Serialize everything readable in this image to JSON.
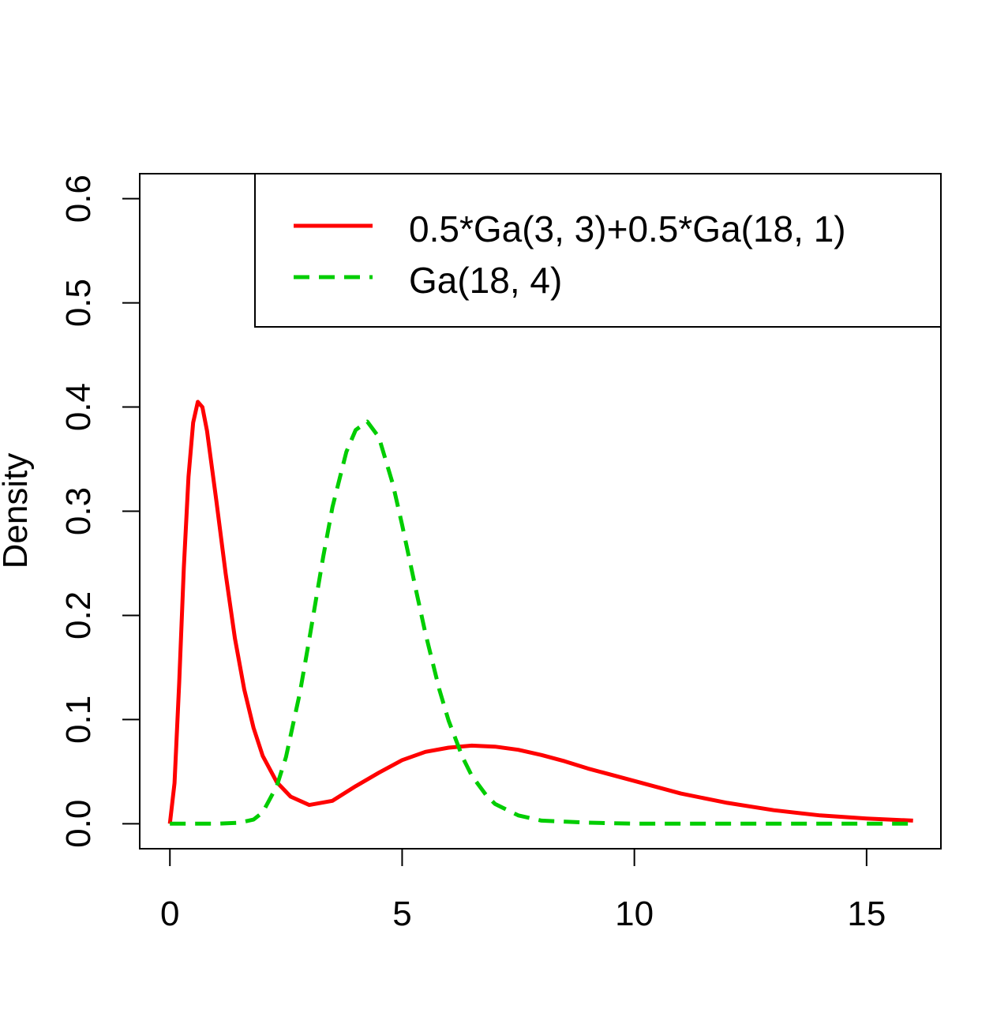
{
  "chart_data": {
    "type": "line",
    "title": "",
    "xlabel": "",
    "ylabel": "Density",
    "xlim": [
      -0.65,
      16.6
    ],
    "ylim": [
      -0.024,
      0.624
    ],
    "x_ticks": [
      "0",
      "5",
      "10",
      "15"
    ],
    "x_tick_values": [
      0,
      5,
      10,
      15
    ],
    "y_ticks": [
      "0.0",
      "0.1",
      "0.2",
      "0.3",
      "0.4",
      "0.5",
      "0.6"
    ],
    "y_tick_values": [
      0,
      0.1,
      0.2,
      0.3,
      0.4,
      0.5,
      0.6
    ],
    "grid": false,
    "legend_position": "top-right",
    "series": [
      {
        "name": "0.5*Ga(3, 3)+0.5*Ga(18, 1)",
        "color": "#FF0000",
        "dash": "solid",
        "x": [
          0,
          0.1,
          0.2,
          0.3,
          0.4,
          0.5,
          0.6,
          0.7,
          0.8,
          1.0,
          1.2,
          1.4,
          1.6,
          1.8,
          2.0,
          2.3,
          2.6,
          3.0,
          3.5,
          4.0,
          4.5,
          5.0,
          5.5,
          6.0,
          6.5,
          7.0,
          7.5,
          8.0,
          8.5,
          9.0,
          10.0,
          11.0,
          12.0,
          13.0,
          14.0,
          15.0,
          16.0
        ],
        "y": [
          0,
          0.039,
          0.135,
          0.246,
          0.333,
          0.385,
          0.405,
          0.4,
          0.377,
          0.31,
          0.24,
          0.178,
          0.129,
          0.092,
          0.065,
          0.04,
          0.026,
          0.018,
          0.022,
          0.036,
          0.049,
          0.061,
          0.069,
          0.073,
          0.075,
          0.074,
          0.071,
          0.066,
          0.06,
          0.053,
          0.041,
          0.029,
          0.02,
          0.013,
          0.008,
          0.005,
          0.003
        ]
      },
      {
        "name": "Ga(18, 4)",
        "color": "#00CD00",
        "dash": "dashed",
        "x": [
          0,
          1.0,
          1.5,
          1.8,
          2.0,
          2.3,
          2.5,
          2.8,
          3.0,
          3.3,
          3.5,
          3.8,
          4.0,
          4.25,
          4.5,
          4.8,
          5.0,
          5.3,
          5.5,
          5.8,
          6.0,
          6.3,
          6.5,
          6.8,
          7.0,
          7.5,
          8.0,
          9.0,
          10.0,
          12.0,
          16.0
        ],
        "y": [
          0,
          0,
          0.001,
          0.004,
          0.011,
          0.036,
          0.064,
          0.126,
          0.177,
          0.256,
          0.304,
          0.357,
          0.378,
          0.386,
          0.371,
          0.326,
          0.287,
          0.224,
          0.183,
          0.129,
          0.099,
          0.064,
          0.046,
          0.028,
          0.019,
          0.008,
          0.003,
          0.001,
          0,
          0,
          0
        ]
      }
    ]
  }
}
